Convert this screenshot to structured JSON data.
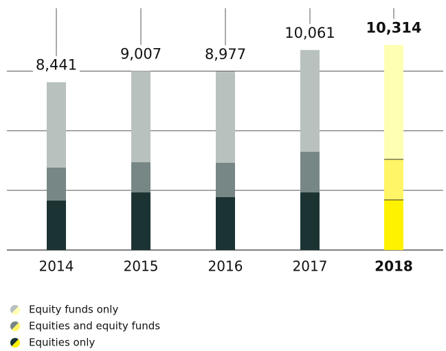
{
  "chart_data": {
    "type": "stacked-bar",
    "categories": [
      "2014",
      "2015",
      "2016",
      "2017",
      "2018"
    ],
    "series": [
      {
        "name": "Equities only",
        "color": "#1c3333",
        "highlight_color": "#fff200",
        "values": [
          2490,
          2900,
          2660,
          2900,
          2520
        ]
      },
      {
        "name": "Equities and equity funds",
        "color": "#778785",
        "highlight_color": "#fff566",
        "values": [
          1660,
          1520,
          1730,
          2040,
          2040
        ]
      },
      {
        "name": "Equity funds only",
        "color": "#b9c1bf",
        "highlight_color": "#ffffb3",
        "values": [
          4291,
          4587,
          4587,
          5121,
          5754
        ]
      }
    ],
    "totals": [
      8441,
      9007,
      8977,
      10061,
      10314
    ],
    "total_labels": [
      "8,441",
      "9,007",
      "8,977",
      "10,061",
      "10,314"
    ],
    "highlight": "2018",
    "ylim": [
      0,
      12576
    ],
    "yticks": [
      0,
      3000,
      6000,
      9000
    ],
    "grid": true
  }
}
